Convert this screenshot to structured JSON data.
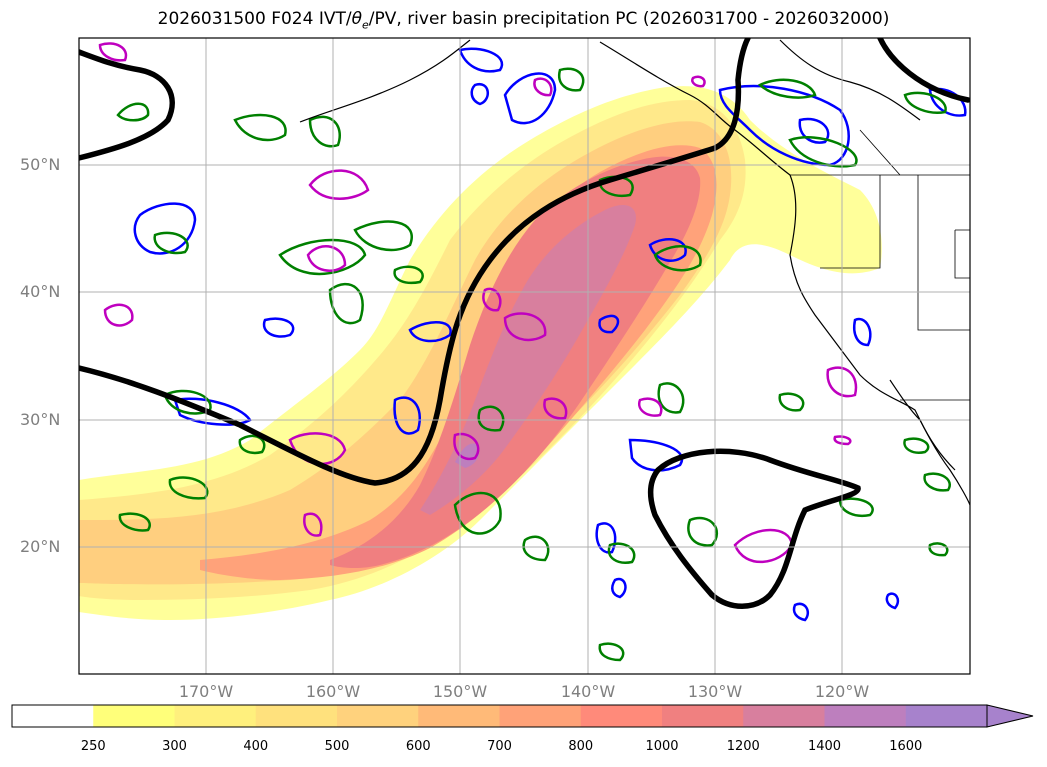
{
  "title": "2026031500 F024 IVT/θe/PV, river basin precipitation PC (2026031700 - 2026032000)",
  "title_parts": {
    "prefix": "2026031500 F024 IVT/",
    "theta": "θ",
    "sub": "e",
    "suffix": "/PV, river basin precipitation PC (2026031700 - 2026032000)"
  },
  "map": {
    "lat_labels": [
      "50°N",
      "40°N",
      "30°N",
      "20°N"
    ],
    "lon_labels": [
      "170°W",
      "160°W",
      "150°W",
      "140°W",
      "130°W",
      "120°W"
    ],
    "lat_range": [
      10,
      60
    ],
    "lon_range": [
      -180,
      -110
    ],
    "grid": true
  },
  "colorbar": {
    "levels": [
      "250",
      "300",
      "400",
      "500",
      "600",
      "700",
      "800",
      "1000",
      "1200",
      "1400",
      "1600"
    ],
    "colors": [
      "#ffffff",
      "#ffff7a",
      "#fff07d",
      "#ffe17d",
      "#ffd27d",
      "#ffba78",
      "#ffa278",
      "#ff8a7a",
      "#f08080",
      "#d87f9e",
      "#bd7fbe",
      "#a782cc"
    ],
    "extend": "max"
  },
  "colors": {
    "theta_e_contour": "#000000",
    "pv_blue": "#0000ff",
    "pv_green": "#008000",
    "pv_magenta": "#bf00bf",
    "coast": "#000000",
    "grid": "#b0b0b0"
  }
}
